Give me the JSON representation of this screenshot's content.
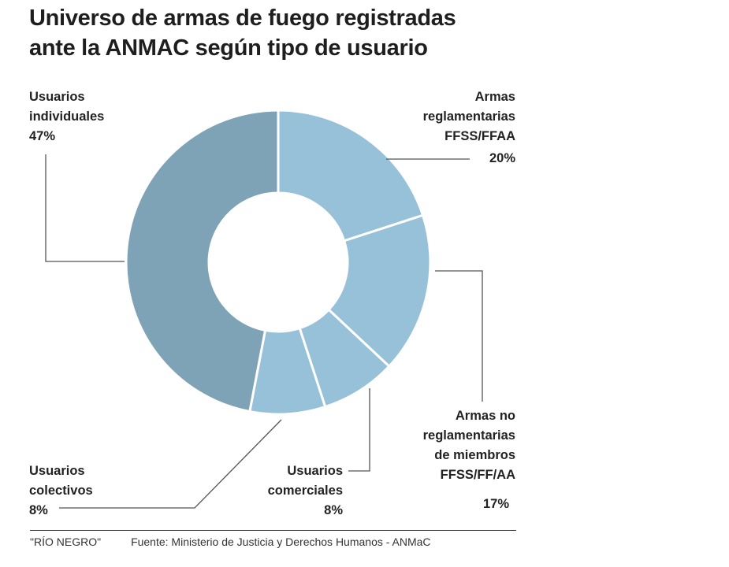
{
  "header": {
    "title_line1": "Universo de armas de fuego registradas",
    "title_line2": "ante la ANMAC según tipo de usuario"
  },
  "footer": {
    "credit": "\"RÍO NEGRO\"",
    "source": "Fuente: Ministerio de Justicia y Derechos Humanos - ANMaC"
  },
  "colors": {
    "light_slice": "#96c1d8",
    "dark_slice": "#7fa3b6",
    "leader": "#555555"
  },
  "chart_data": {
    "type": "pie",
    "variant": "donut",
    "title": "Universo de armas de fuego registradas ante la ANMAC según tipo de usuario",
    "unit": "%",
    "direction": "clockwise from top",
    "slices": [
      {
        "id": "reglamentarias",
        "label_lines": [
          "Armas",
          "reglamentarias",
          "FFSS/FFAA"
        ],
        "value": 20,
        "value_label": "20%",
        "color": "#96c1d8"
      },
      {
        "id": "no-reglamentarias",
        "label_lines": [
          "Armas no",
          "reglamentarias",
          "de miembros",
          "FFSS/FF/AA"
        ],
        "value": 17,
        "value_label": "17%",
        "color": "#96c1d8"
      },
      {
        "id": "comerciales",
        "label_lines": [
          "Usuarios",
          "comerciales"
        ],
        "value": 8,
        "value_label": "8%",
        "color": "#96c1d8"
      },
      {
        "id": "colectivos",
        "label_lines": [
          "Usuarios",
          "colectivos"
        ],
        "value": 8,
        "value_label": "8%",
        "color": "#96c1d8"
      },
      {
        "id": "individuales",
        "label_lines": [
          "Usuarios",
          "individuales"
        ],
        "value": 47,
        "value_label": "47%",
        "color": "#7fa3b6"
      }
    ]
  }
}
